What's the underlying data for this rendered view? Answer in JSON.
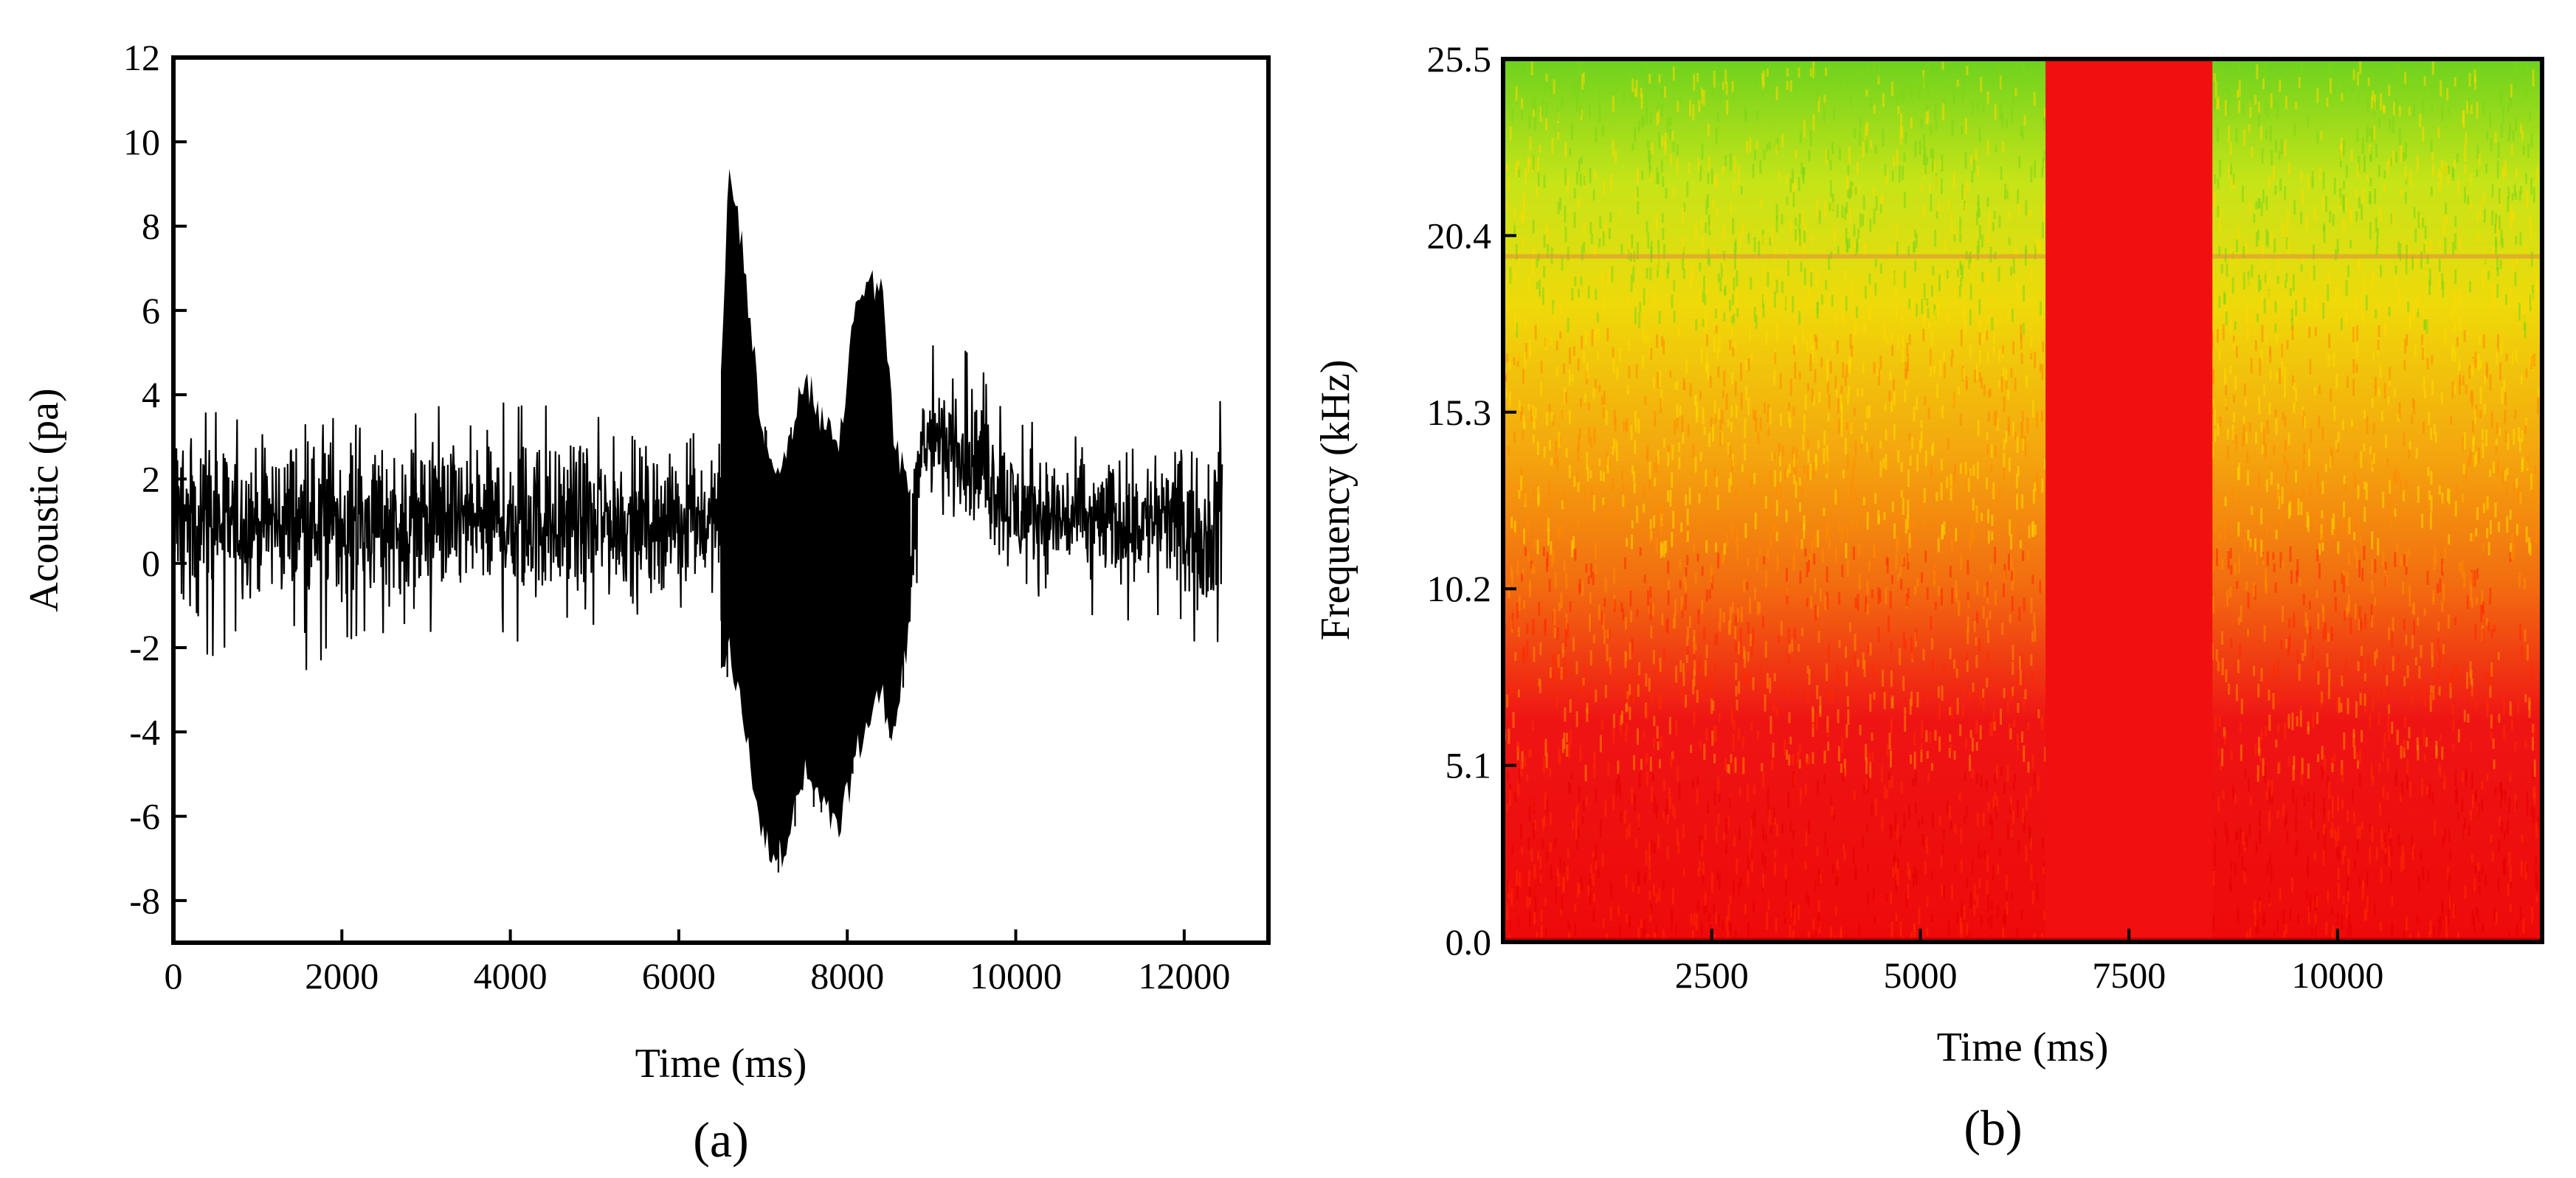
{
  "chart_data": [
    {
      "type": "line",
      "panel_label": "(a)",
      "xlabel": "Time (ms)",
      "ylabel": "Acoustic (pa)",
      "xlim": [
        0,
        13000
      ],
      "ylim": [
        -9,
        12
      ],
      "xticks": [
        0,
        2000,
        4000,
        6000,
        8000,
        10000,
        12000
      ],
      "yticks": [
        -8,
        -6,
        -4,
        -2,
        0,
        2,
        4,
        6,
        8,
        10,
        12
      ],
      "x_range": [
        0,
        12450
      ],
      "envelope": [
        {
          "t": 0,
          "lo": -1.3,
          "hi": 4.2,
          "mean": 1.0
        },
        {
          "t": 300,
          "lo": -2.4,
          "hi": 3.8,
          "mean": 1.0
        },
        {
          "t": 1000,
          "lo": -1.6,
          "hi": 3.5,
          "mean": 1.0
        },
        {
          "t": 1500,
          "lo": -2.6,
          "hi": 3.6,
          "mean": 1.0
        },
        {
          "t": 2500,
          "lo": -1.8,
          "hi": 3.5,
          "mean": 1.0
        },
        {
          "t": 3500,
          "lo": -1.6,
          "hi": 4.0,
          "mean": 1.0
        },
        {
          "t": 4500,
          "lo": -2.1,
          "hi": 3.8,
          "mean": 1.0
        },
        {
          "t": 5500,
          "lo": -1.6,
          "hi": 3.4,
          "mean": 1.0
        },
        {
          "t": 6450,
          "lo": -1.2,
          "hi": 3.0,
          "mean": 1.0
        },
        {
          "t": 6520,
          "lo": -3.4,
          "hi": 6.0,
          "mean": 1.5
        },
        {
          "t": 6600,
          "lo": -2.5,
          "hi": 10.0,
          "mean": 4.0
        },
        {
          "t": 6750,
          "lo": -4.0,
          "hi": 8.0,
          "mean": 2.0
        },
        {
          "t": 7000,
          "lo": -7.0,
          "hi": 3.5,
          "mean": -0.5
        },
        {
          "t": 7200,
          "lo": -7.4,
          "hi": 2.5,
          "mean": -1.0
        },
        {
          "t": 7500,
          "lo": -5.5,
          "hi": 4.8,
          "mean": 0.0
        },
        {
          "t": 7900,
          "lo": -6.9,
          "hi": 3.0,
          "mean": -1.0
        },
        {
          "t": 8100,
          "lo": -5.0,
          "hi": 6.8,
          "mean": 1.0
        },
        {
          "t": 8400,
          "lo": -3.5,
          "hi": 7.2,
          "mean": 1.5
        },
        {
          "t": 8550,
          "lo": -4.5,
          "hi": 3.5,
          "mean": -0.5
        },
        {
          "t": 8750,
          "lo": -2.0,
          "hi": 2.0,
          "mean": 0.0
        },
        {
          "t": 8900,
          "lo": 1.0,
          "hi": 5.5,
          "mean": 3.0
        },
        {
          "t": 9500,
          "lo": 0.5,
          "hi": 5.0,
          "mean": 2.5
        },
        {
          "t": 10000,
          "lo": -1.0,
          "hi": 3.5,
          "mean": 1.2
        },
        {
          "t": 11000,
          "lo": -1.3,
          "hi": 3.0,
          "mean": 1.0
        },
        {
          "t": 12000,
          "lo": -1.7,
          "hi": 2.8,
          "mean": 1.0
        },
        {
          "t": 12300,
          "lo": -2.3,
          "hi": 2.6,
          "mean": 0.5
        },
        {
          "t": 12450,
          "lo": -2.0,
          "hi": 4.7,
          "mean": 1.5
        }
      ]
    },
    {
      "type": "heatmap",
      "panel_label": "(b)",
      "xlabel": "Time (ms)",
      "ylabel": "Frequency (kHz)",
      "xlim": [
        0,
        12450
      ],
      "ylim": [
        0,
        25.5
      ],
      "xticks": [
        2500,
        5000,
        7500,
        10000
      ],
      "yticks": [
        "0.0",
        "5.1",
        "10.2",
        "15.3",
        "20.4",
        "25.5"
      ],
      "saturated_time_range": [
        6500,
        8500
      ],
      "harmonic_line_khz": 19.8,
      "colors": {
        "low": "#5cd01a",
        "mid": "#f0ee00",
        "high": "#f01010"
      }
    }
  ]
}
